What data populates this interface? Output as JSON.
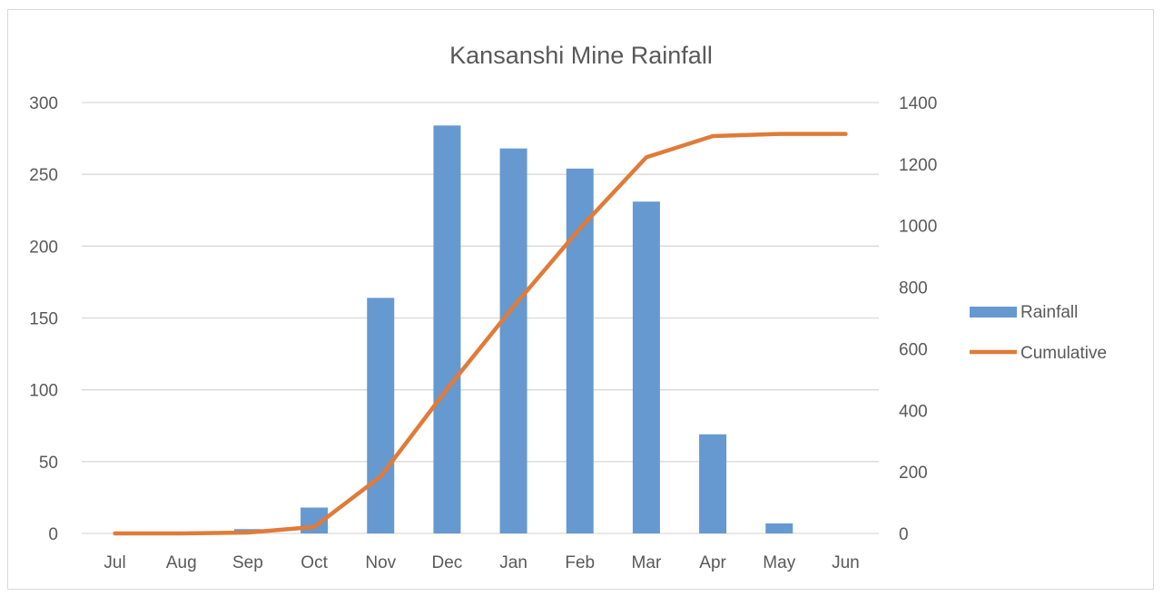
{
  "chart_data": {
    "type": "bar",
    "title": "Kansanshi Mine Rainfall",
    "categories": [
      "Jul",
      "Aug",
      "Sep",
      "Oct",
      "Nov",
      "Dec",
      "Jan",
      "Feb",
      "Mar",
      "Apr",
      "May",
      "Jun"
    ],
    "series": [
      {
        "name": "Rainfall",
        "type": "bar",
        "axis": "left",
        "color": "#6699cf",
        "values": [
          0,
          0,
          3,
          18,
          164,
          284,
          268,
          254,
          231,
          69,
          7,
          0
        ]
      },
      {
        "name": "Cumulative",
        "type": "line",
        "axis": "right",
        "color": "#e07b39",
        "values": [
          0,
          0,
          3,
          21,
          185,
          469,
          737,
          991,
          1222,
          1291,
          1298,
          1298
        ]
      }
    ],
    "y_left": {
      "min": 0,
      "max": 300,
      "ticks": [
        "0",
        "50",
        "100",
        "150",
        "200",
        "250",
        "300"
      ]
    },
    "y_right": {
      "min": 0,
      "max": 1400,
      "ticks": [
        "0",
        "200",
        "400",
        "600",
        "800",
        "1000",
        "1200",
        "1400"
      ]
    },
    "grid": true,
    "legend": "right",
    "gridColor": "#d9d9d9",
    "textColor": "#595959"
  }
}
